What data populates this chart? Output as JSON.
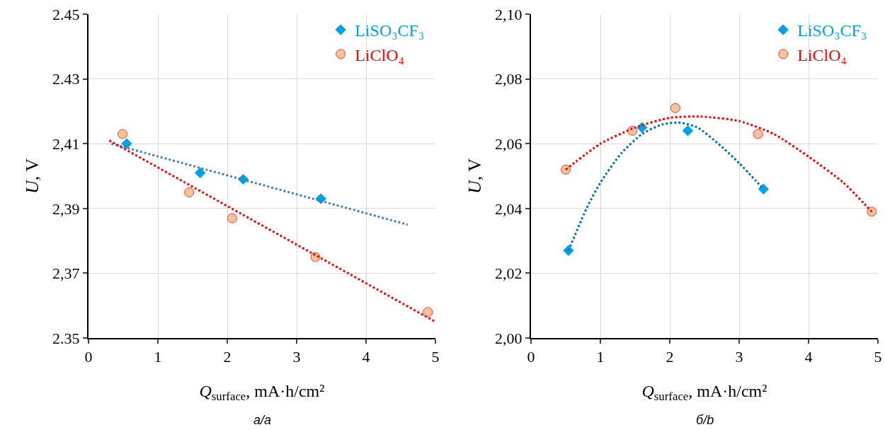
{
  "chart_data": [
    {
      "type": "scatter",
      "xlabel": "Q$_{surface}$, mA·h/cm²",
      "ylabel": "U, V",
      "annotations": [
        "а/a"
      ],
      "xlim": [
        0,
        5
      ],
      "xticks": [
        0,
        1,
        2,
        3,
        4,
        5
      ],
      "ylim": [
        2.35,
        2.45
      ],
      "yticks": [
        {
          "value": 2.35,
          "label": "2.35"
        },
        {
          "value": 2.37,
          "label": "2,37"
        },
        {
          "value": 2.39,
          "label": "2,39"
        },
        {
          "value": 2.41,
          "label": "2,41"
        },
        {
          "value": 2.43,
          "label": "2.43"
        },
        {
          "value": 2.45,
          "label": "2.45"
        }
      ],
      "grid": true,
      "legend": "top right",
      "series": [
        {
          "name": "LiSO₃CF₃",
          "color": "#00a0e9",
          "marker": "diamond",
          "x": [
            0.55,
            1.61,
            2.23,
            3.35
          ],
          "values": [
            2.41,
            2.401,
            2.399,
            2.393
          ]
        },
        {
          "name": "LiClO₄",
          "color": "#f8c39a",
          "marker": "circle",
          "x": [
            0.49,
            1.45,
            2.07,
            3.27,
            4.89
          ],
          "values": [
            2.413,
            2.395,
            2.387,
            2.375,
            2.358
          ]
        },
        {
          "type": "line",
          "color": "#4a7ebb",
          "line_style": "dotted",
          "x": [
            0.33,
            4.6
          ],
          "values": [
            2.41,
            2.385
          ]
        },
        {
          "type": "line",
          "color": "#ff0000",
          "line_style": "dotted",
          "x": [
            0.3,
            5.0
          ],
          "values": [
            2.411,
            2.355
          ]
        }
      ]
    },
    {
      "type": "scatter",
      "xlabel": "Q$_{surface}$, mA·h/cm²",
      "ylabel": "U, V",
      "annotations": [
        "б/b"
      ],
      "xlim": [
        0,
        5
      ],
      "xticks": [
        0,
        1,
        2,
        3,
        4,
        5
      ],
      "ylim": [
        2.0,
        2.1
      ],
      "yticks": [
        {
          "value": 2.0,
          "label": "2,00"
        },
        {
          "value": 2.02,
          "label": "2,02"
        },
        {
          "value": 2.04,
          "label": "2,04"
        },
        {
          "value": 2.06,
          "label": "2,06"
        },
        {
          "value": 2.08,
          "label": "2,08"
        },
        {
          "value": 2.1,
          "label": "2,10"
        }
      ],
      "grid": true,
      "legend": "top right",
      "series": [
        {
          "name": "LiSO₃CF₃",
          "color": "#00a0e9",
          "marker": "diamond",
          "x": [
            0.54,
            1.6,
            2.26,
            3.35
          ],
          "values": [
            2.027,
            2.065,
            2.064,
            2.046
          ]
        },
        {
          "name": "LiClO₄",
          "color": "#f8c39a",
          "marker": "circle",
          "x": [
            0.5,
            1.46,
            2.08,
            3.27,
            4.91
          ],
          "values": [
            2.052,
            2.064,
            2.071,
            2.063,
            2.039
          ]
        },
        {
          "type": "line",
          "color": "#0070c0",
          "line_style": "dotted",
          "x": [
            0.54,
            0.8,
            1.0,
            1.3,
            1.6,
            1.9,
            2.15,
            2.4,
            2.7,
            3.0,
            3.35
          ],
          "values": [
            2.027,
            2.04,
            2.048,
            2.057,
            2.063,
            2.066,
            2.0665,
            2.065,
            2.06,
            2.054,
            2.046
          ]
        },
        {
          "type": "line",
          "color": "#ff0000",
          "line_style": "dotted",
          "x": [
            0.5,
            1.0,
            1.5,
            2.0,
            2.44,
            3.0,
            3.5,
            4.0,
            4.5,
            4.91
          ],
          "values": [
            2.052,
            2.06,
            2.065,
            2.068,
            2.0684,
            2.067,
            2.063,
            2.056,
            2.048,
            2.039
          ]
        }
      ]
    }
  ]
}
